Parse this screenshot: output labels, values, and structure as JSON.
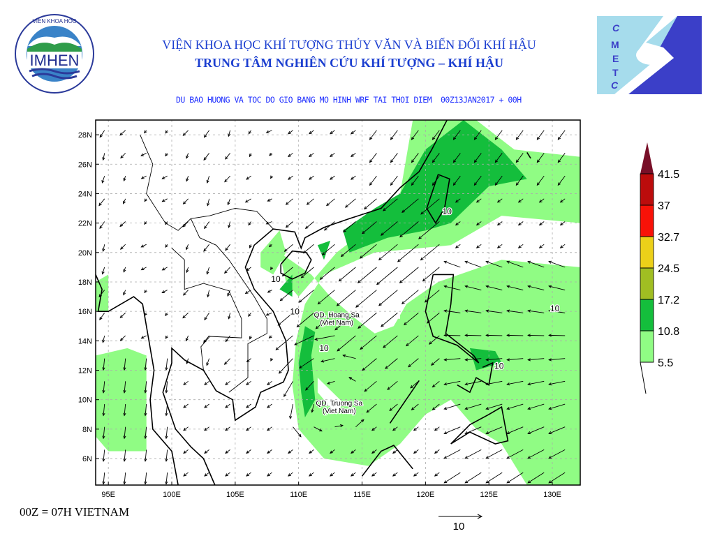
{
  "header": {
    "title_line1": "VIỆN KHOA HỌC KHÍ TƯỢNG THỦY VĂN VÀ BIẾN ĐỔI KHÍ HẬU",
    "title_line2": "TRUNG TÂM NGHIÊN CỨU KHÍ TƯỢNG – KHÍ HẬU",
    "subtitle": "DU BAO HUONG VA TOC DO GIO BANG MO HINH WRF TAI THOI DIEM  00Z13JAN2017 + 00H"
  },
  "logos": {
    "left": {
      "ring_top": "VIEN KHOA HOC",
      "ring_bottom": "KHI TUONG THUY VAN VA BIEN DOI KHI HAU",
      "center": "IMHEN"
    },
    "right": {
      "letters": [
        "C",
        "M",
        "E",
        "T",
        "C"
      ],
      "colors": {
        "light": "#a6dcec",
        "dark": "#3b3fc8"
      }
    }
  },
  "map": {
    "lon_range": [
      94,
      132.2
    ],
    "lat_range": [
      4.2,
      29
    ],
    "lon_ticks": [
      "95E",
      "100E",
      "105E",
      "110E",
      "115E",
      "120E",
      "125E",
      "130E"
    ],
    "lat_ticks": [
      "6N",
      "8N",
      "10N",
      "12N",
      "14N",
      "16N",
      "18N",
      "20N",
      "22N",
      "24N",
      "26N",
      "28N"
    ],
    "contour_labels": [
      "10",
      "10",
      "10",
      "10",
      "10",
      "10"
    ],
    "place_labels": [
      {
        "name": "QD. Hoang Sa",
        "sub": "(Viet Nam)"
      },
      {
        "name": "QD. Truong Sa",
        "sub": "(Viet Nam)"
      }
    ],
    "reference_vector": "10"
  },
  "colorbar": {
    "levels": [
      "5.5",
      "10.8",
      "17.2",
      "24.5",
      "32.7",
      "37",
      "41.5"
    ],
    "colors": [
      "#90fc84",
      "#14be3c",
      "#a0be22",
      "#ecd019",
      "#f81208",
      "#bc0c0c",
      "#780f28"
    ]
  },
  "footer": "00Z = 07H VIETNAM"
}
